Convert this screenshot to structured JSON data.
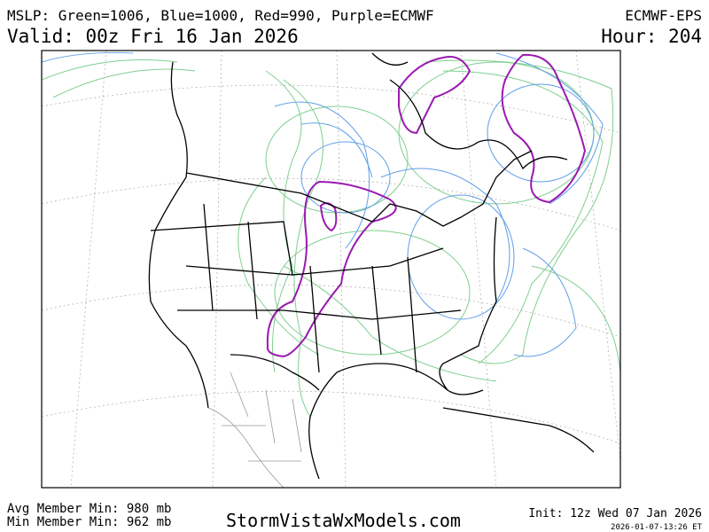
{
  "header": {
    "legend": "MSLP: Green=1006, Blue=1000, Red=990, Purple=ECMWF",
    "product": "ECMWF-EPS",
    "valid": "Valid: 00z Fri 16 Jan 2026",
    "hour": "Hour: 204"
  },
  "footer": {
    "avg_min": "Avg Member Min: 980 mb",
    "min_min": "Min Member Min: 962 mb",
    "site": "StormVistaWxModels.com",
    "init": "Init: 12z Wed 07 Jan 2026",
    "timestamp": "2026-01-07-13:26 ET"
  }
}
